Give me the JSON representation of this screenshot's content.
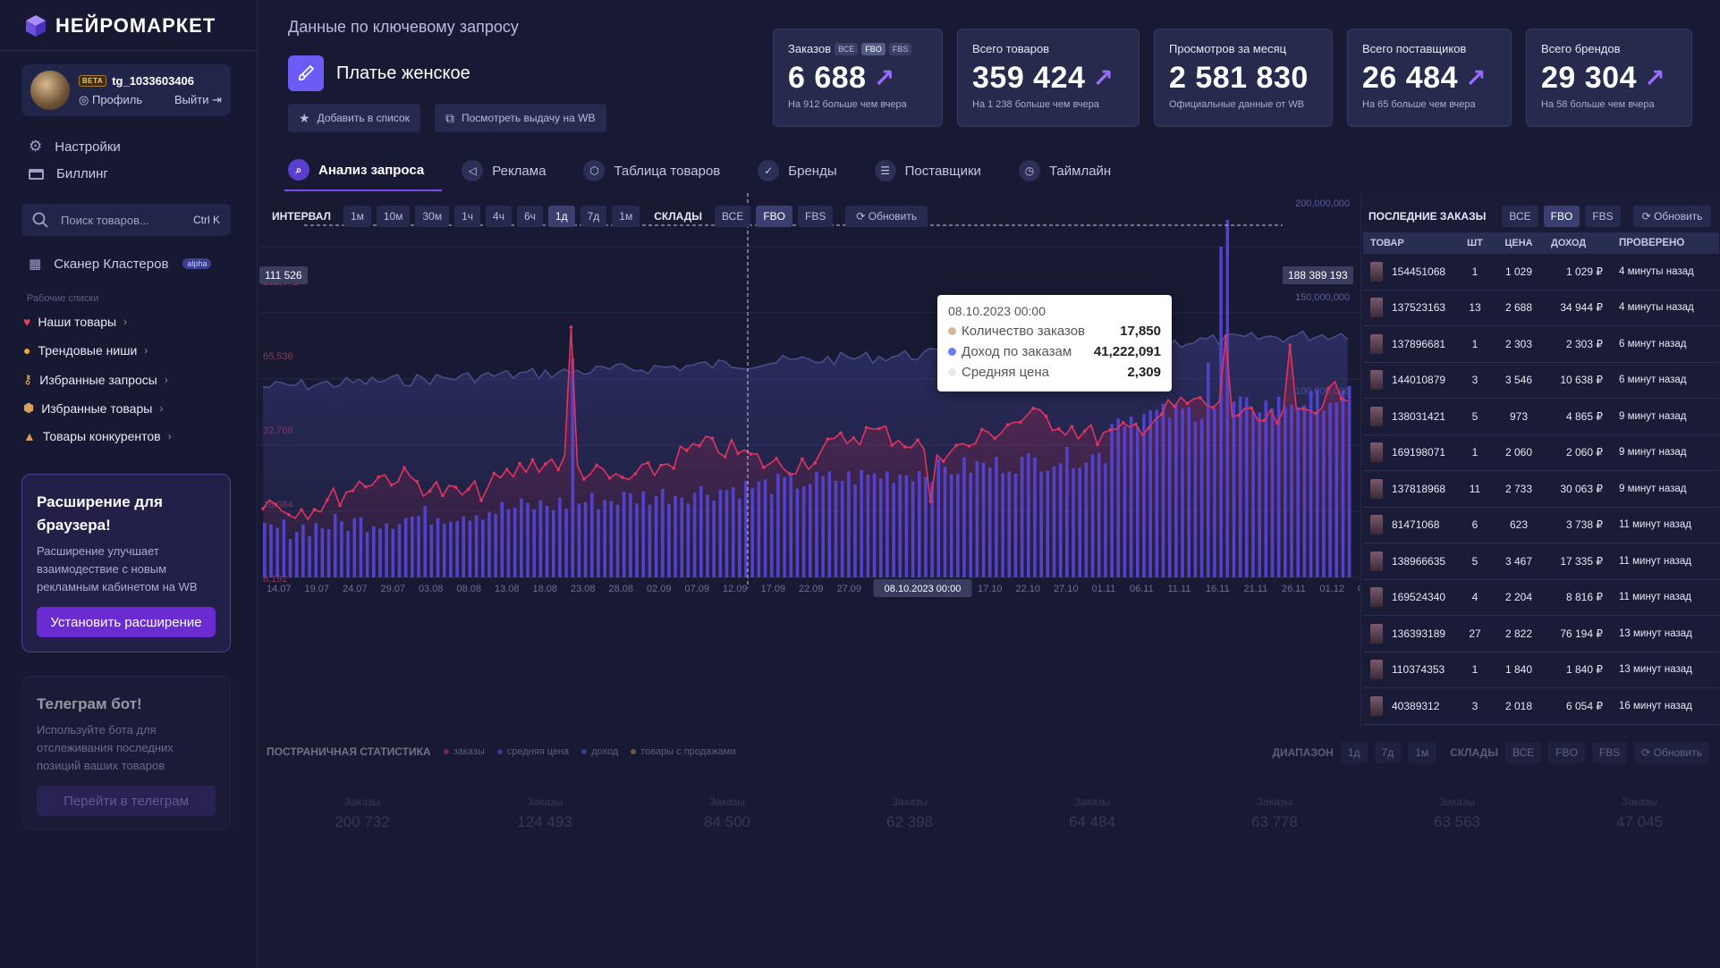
{
  "app": {
    "logo_text": "НЕЙРОМАРКЕТ",
    "accent": "#7b4cf0"
  },
  "user": {
    "badge": "BETA",
    "name": "tg_1033603406",
    "profile_label": "Профиль",
    "logout_label": "Выйти"
  },
  "sidebar": {
    "menu": [
      {
        "icon": "gear-icon",
        "label": "Настройки"
      },
      {
        "icon": "card-icon",
        "label": "Биллинг"
      }
    ],
    "search": {
      "placeholder": "Поиск товаров...",
      "shortcut": "Ctrl K"
    },
    "scanner": {
      "label": "Сканер Кластеров",
      "badge": "alpha"
    },
    "worklists_title": "Рабочие списки",
    "worklists": [
      {
        "icon": "heart-icon",
        "label": "Наши товары",
        "color": "#e5405e"
      },
      {
        "icon": "fire-icon",
        "label": "Трендовые ниши",
        "color": "#f2a33b"
      },
      {
        "icon": "key-icon",
        "label": "Избранные запросы",
        "color": "#e9b04c"
      },
      {
        "icon": "box-icon",
        "label": "Избранные товары",
        "color": "#d9a05a"
      },
      {
        "icon": "mountain-icon",
        "label": "Товары конкурентов",
        "color": "#d89a62"
      }
    ],
    "promo_extension": {
      "title": "Расширение для браузера!",
      "text": "Расширение улучшает взаимодествие с новым рекламным кабинетом на WB",
      "button": "Установить расширение"
    },
    "promo_telegram": {
      "title": "Телеграм бот!",
      "text": "Используйте бота для отслеживания последних позиций ваших товаров",
      "button": "Перейти в телеграм"
    }
  },
  "header": {
    "keyword_label": "Данные по ключевому запросу",
    "keyword_value": "Платье женское",
    "add_to_list": "Добавить в список",
    "view_wb": "Посмотреть выдачу на WB",
    "stats": [
      {
        "label": "Заказов",
        "tags": [
          "ВСЕ",
          "FBO",
          "FBS"
        ],
        "value": "6 688",
        "sub": "На 912 больше чем вчера"
      },
      {
        "label": "Всего товаров",
        "tags": [],
        "value": "359 424",
        "sub": "На 1 238 больше чем вчера"
      },
      {
        "label": "Просмотров за месяц",
        "tags": [],
        "value": "2 581 830",
        "sub": "Официальные данные от WB"
      },
      {
        "label": "Всего поставщиков",
        "tags": [],
        "value": "26 484",
        "sub": "На 65 больше чем вчера"
      },
      {
        "label": "Всего брендов",
        "tags": [],
        "value": "29 304",
        "sub": "На 58 больше чем вчера"
      }
    ]
  },
  "tabs": [
    {
      "icon": "search-icon",
      "label": "Анализ запроса",
      "active": true
    },
    {
      "icon": "megaphone-icon",
      "label": "Реклама",
      "active": false
    },
    {
      "icon": "cube-icon",
      "label": "Таблица товаров",
      "active": false
    },
    {
      "icon": "check-icon",
      "label": "Бренды",
      "active": false
    },
    {
      "icon": "database-icon",
      "label": "Поставщики",
      "active": false
    },
    {
      "icon": "clock-icon",
      "label": "Таймлайн",
      "active": false
    }
  ],
  "toolbar": {
    "interval_label": "ИНТЕРВАЛ",
    "intervals": [
      "1м",
      "10м",
      "30м",
      "1ч",
      "4ч",
      "6ч",
      "1д",
      "7д",
      "1м"
    ],
    "interval_active": 6,
    "warehouses_label": "СКЛАДЫ",
    "warehouses": [
      "ВСЕ",
      "FBO",
      "FBS"
    ],
    "warehouse_active": 1,
    "refresh": "Обновить"
  },
  "chart_data": {
    "type": "bar",
    "x_ticks": [
      "14.07",
      "19.07",
      "24.07",
      "29.07",
      "03.08",
      "08.08",
      "13.08",
      "18.08",
      "23.08",
      "28.08",
      "02.09",
      "07.09",
      "12.09",
      "17.09",
      "22.09",
      "27.09",
      "02.10",
      "08.10.2023 00:00",
      "17.10",
      "22.10",
      "27.10",
      "01.11",
      "06.11",
      "11.11",
      "16.11",
      "21.11",
      "26.11",
      "01.12",
      "06.1"
    ],
    "y_left_ticks": [
      "131,072",
      "65,536",
      "32,768",
      "16,384",
      "8,192"
    ],
    "y_right_ticks": [
      "200,000,000",
      "150,000,000",
      "100,000,000"
    ],
    "crosshair_left": "111 526",
    "crosshair_right": "188 389 193",
    "series_colors": {
      "orders": "#e0345e",
      "income": "#6a5cf5",
      "avg_price": "#4a4f8c"
    },
    "tooltip": {
      "date": "08.10.2023 00:00",
      "rows": [
        {
          "label": "Количество заказов",
          "value": "17,850",
          "color": "#d2b79c"
        },
        {
          "label": "Доход по заказам",
          "value": "41,222,091",
          "color": "#6a7ff0"
        },
        {
          "label": "Средняя цена",
          "value": "2,309",
          "color": "#e8e8f0"
        }
      ]
    }
  },
  "orders": {
    "title": "ПОСЛЕДНИЕ ЗАКАЗЫ",
    "filters": [
      "ВСЕ",
      "FBO",
      "FBS"
    ],
    "filter_active": 1,
    "refresh": "Обновить",
    "columns": [
      "ТОВАР",
      "ШТ",
      "ЦЕНА",
      "ДОХОД",
      "ПРОВЕРЕНО"
    ],
    "rows": [
      {
        "id": "154451068",
        "qty": "1",
        "price": "1 029",
        "income": "1 029 ₽",
        "ago": "4 минуты назад"
      },
      {
        "id": "137523163",
        "qty": "13",
        "price": "2 688",
        "income": "34 944 ₽",
        "ago": "4 минуты назад"
      },
      {
        "id": "137896681",
        "qty": "1",
        "price": "2 303",
        "income": "2 303 ₽",
        "ago": "6 минут назад"
      },
      {
        "id": "144010879",
        "qty": "3",
        "price": "3 546",
        "income": "10 638 ₽",
        "ago": "6 минут назад"
      },
      {
        "id": "138031421",
        "qty": "5",
        "price": "973",
        "income": "4 865 ₽",
        "ago": "9 минут назад"
      },
      {
        "id": "169198071",
        "qty": "1",
        "price": "2 060",
        "income": "2 060 ₽",
        "ago": "9 минут назад"
      },
      {
        "id": "137818968",
        "qty": "11",
        "price": "2 733",
        "income": "30 063 ₽",
        "ago": "9 минут назад"
      },
      {
        "id": "81471068",
        "qty": "6",
        "price": "623",
        "income": "3 738 ₽",
        "ago": "11 минут назад"
      },
      {
        "id": "138966635",
        "qty": "5",
        "price": "3 467",
        "income": "17 335 ₽",
        "ago": "11 минут назад"
      },
      {
        "id": "169524340",
        "qty": "4",
        "price": "2 204",
        "income": "8 816 ₽",
        "ago": "11 минут назад"
      },
      {
        "id": "136393189",
        "qty": "27",
        "price": "2 822",
        "income": "76 194 ₽",
        "ago": "13 минут назад"
      },
      {
        "id": "110374353",
        "qty": "1",
        "price": "1 840",
        "income": "1 840 ₽",
        "ago": "13 минут назад"
      },
      {
        "id": "40389312",
        "qty": "3",
        "price": "2 018",
        "income": "6 054 ₽",
        "ago": "16 минут назад"
      }
    ]
  },
  "page_stats": {
    "title": "ПОСТРАНИЧНАЯ СТАТИСТИКА",
    "legend": [
      {
        "label": "заказы",
        "color": "#e0345e"
      },
      {
        "label": "средняя цена",
        "color": "#6a5cf5"
      },
      {
        "label": "доход",
        "color": "#5a6fe0"
      },
      {
        "label": "товары с продажами",
        "color": "#e2a040"
      }
    ],
    "range_label": "ДИАПАЗОН",
    "ranges": [
      "1д",
      "7д",
      "1м"
    ],
    "warehouses_label": "СКЛАДЫ",
    "warehouses": [
      "ВСЕ",
      "FBO",
      "FBS"
    ],
    "refresh": "Обновить",
    "cells": [
      {
        "label": "Заказы",
        "value": "200 732"
      },
      {
        "label": "Заказы",
        "value": "124 493"
      },
      {
        "label": "Заказы",
        "value": "84 500"
      },
      {
        "label": "Заказы",
        "value": "62 398"
      },
      {
        "label": "Заказы",
        "value": "64 484"
      },
      {
        "label": "Заказы",
        "value": "63 778"
      },
      {
        "label": "Заказы",
        "value": "63 563"
      },
      {
        "label": "Заказы",
        "value": "47 045"
      }
    ]
  }
}
